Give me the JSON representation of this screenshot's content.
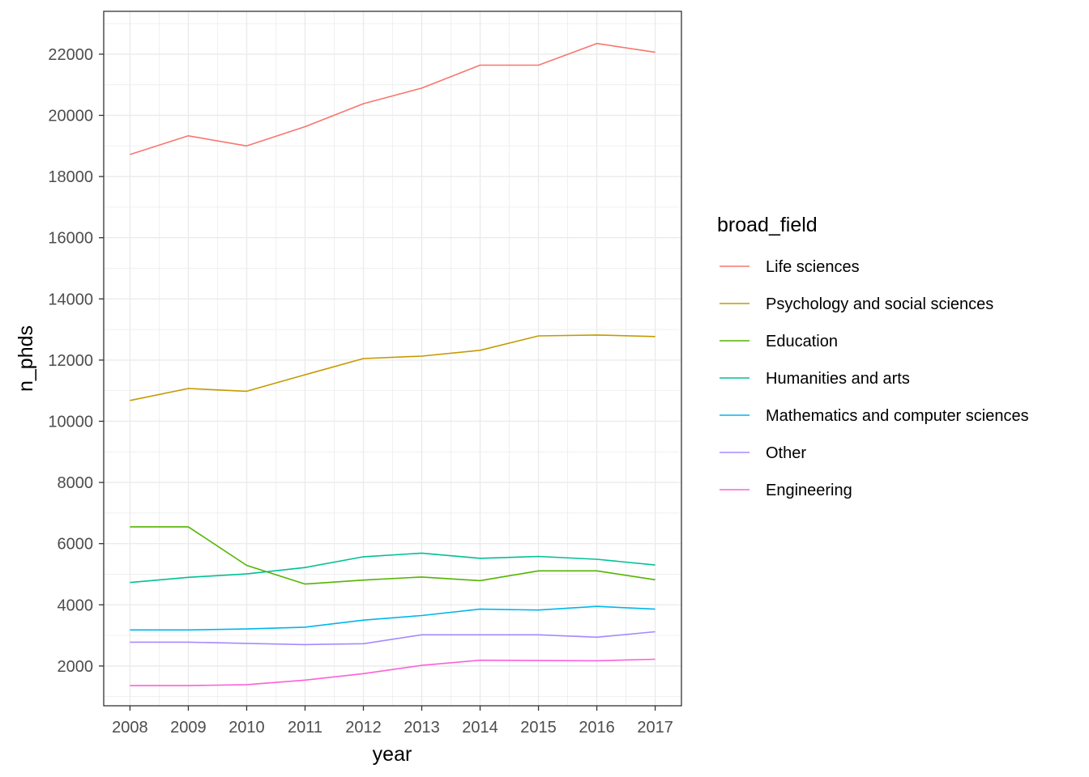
{
  "chart_data": {
    "type": "line",
    "title": "",
    "xlabel": "year",
    "ylabel": "n_phds",
    "x": [
      2008,
      2009,
      2010,
      2011,
      2012,
      2013,
      2014,
      2015,
      2016,
      2017
    ],
    "x_tick_labels": [
      "2008",
      "2009",
      "2010",
      "2011",
      "2012",
      "2013",
      "2014",
      "2015",
      "2016",
      "2017"
    ],
    "y_ticks": [
      2000,
      4000,
      6000,
      8000,
      10000,
      12000,
      14000,
      16000,
      18000,
      20000,
      22000
    ],
    "y_tick_labels": [
      "2000",
      "4000",
      "6000",
      "8000",
      "10000",
      "12000",
      "14000",
      "16000",
      "18000",
      "20000",
      "22000"
    ],
    "xlim": [
      2007.55,
      2017.45
    ],
    "ylim": [
      700,
      23400
    ],
    "grid": true,
    "legend": {
      "title": "broad_field",
      "position": "right"
    },
    "series": [
      {
        "name": "Life sciences",
        "color": "#F8766D",
        "values": [
          18720,
          19330,
          19000,
          19630,
          20380,
          20890,
          21640,
          21640,
          22350,
          22060
        ]
      },
      {
        "name": "Psychology and social sciences",
        "color": "#C49A00",
        "values": [
          10680,
          11070,
          10980,
          11520,
          12050,
          12130,
          12320,
          12790,
          12820,
          12770
        ]
      },
      {
        "name": "Education",
        "color": "#53B400",
        "values": [
          6550,
          6550,
          5290,
          4680,
          4810,
          4910,
          4790,
          5110,
          5110,
          4820
        ]
      },
      {
        "name": "Humanities and arts",
        "color": "#00C094",
        "values": [
          4730,
          4900,
          5010,
          5220,
          5570,
          5690,
          5520,
          5580,
          5490,
          5300
        ]
      },
      {
        "name": "Mathematics and computer sciences",
        "color": "#00B6EB",
        "values": [
          3180,
          3180,
          3210,
          3270,
          3500,
          3650,
          3860,
          3830,
          3950,
          3860
        ]
      },
      {
        "name": "Other",
        "color": "#A58AFF",
        "values": [
          2780,
          2780,
          2740,
          2700,
          2730,
          3020,
          3020,
          3020,
          2940,
          3120
        ]
      },
      {
        "name": "Engineering",
        "color": "#FB61D7",
        "values": [
          1360,
          1360,
          1390,
          1540,
          1750,
          2020,
          2190,
          2180,
          2170,
          2220
        ]
      }
    ]
  }
}
